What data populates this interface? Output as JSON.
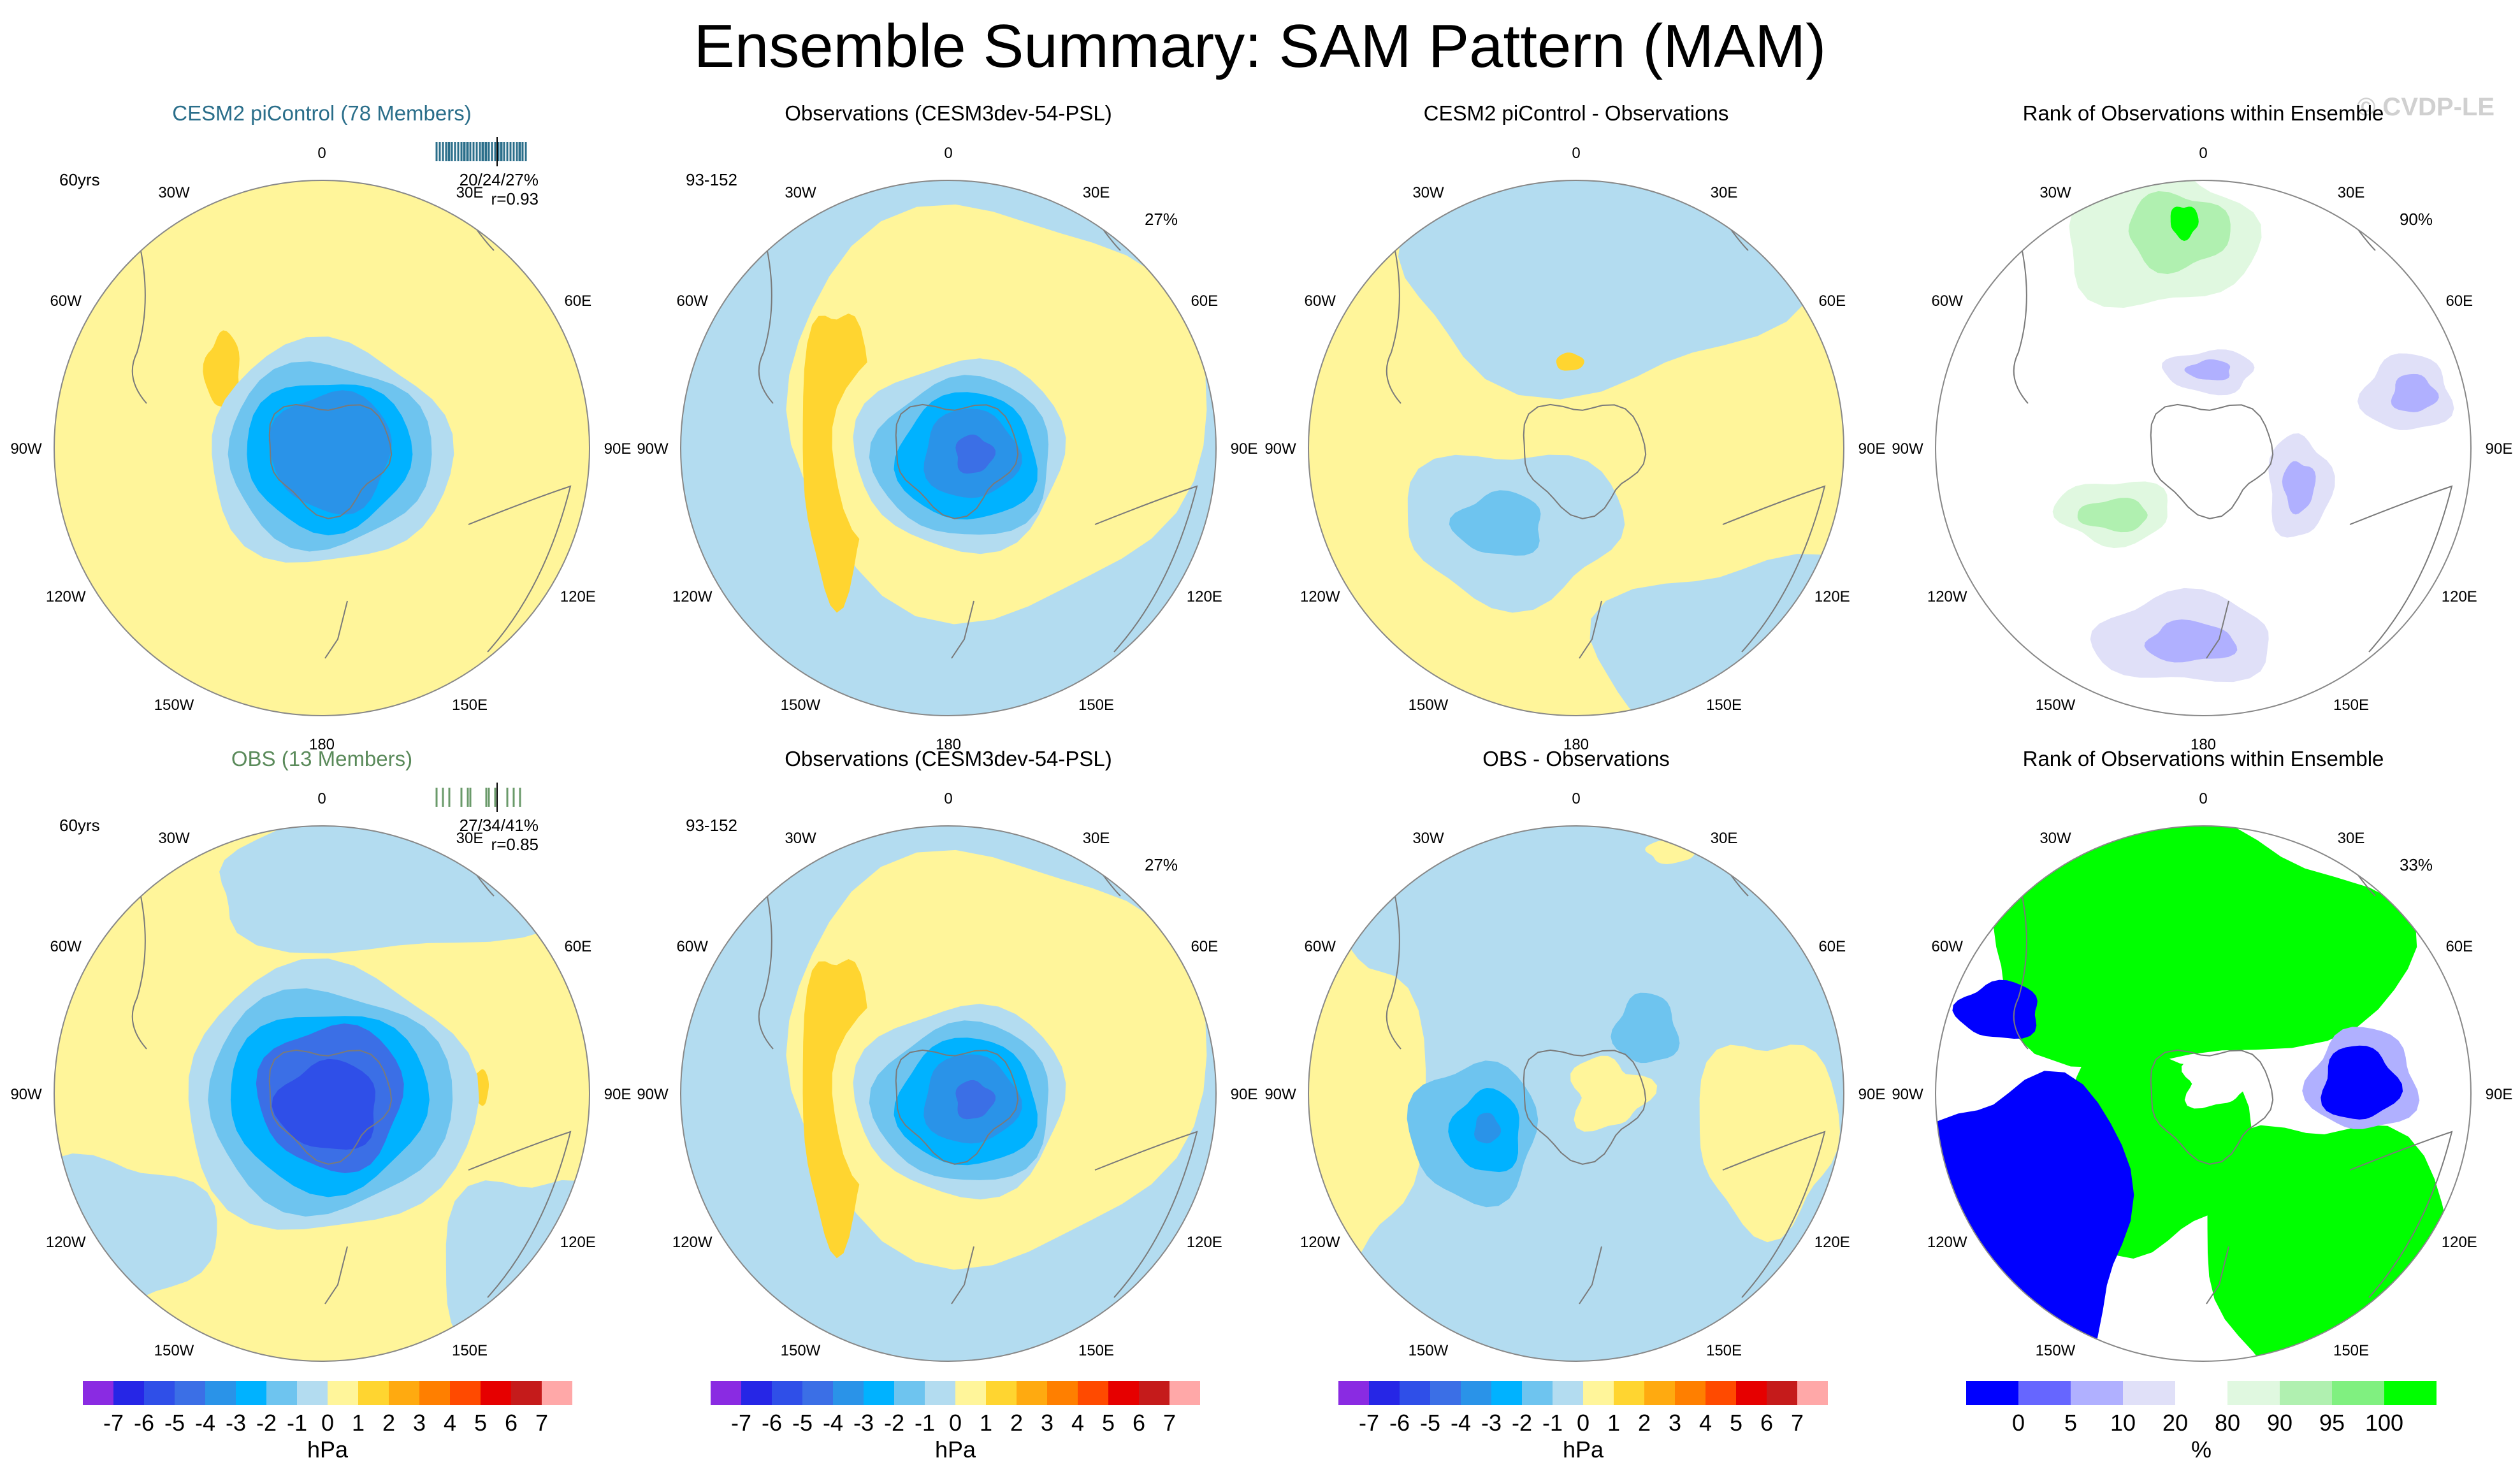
{
  "title": "Ensemble Summary: SAM Pattern (MAM)",
  "watermark": "© CVDP-LE",
  "chart_data": {
    "type": "polar-stereographic contour maps",
    "units": "hPa",
    "longitude_labels": [
      "0",
      "30E",
      "60E",
      "90E",
      "120E",
      "150E",
      "180",
      "150W",
      "120W",
      "90W",
      "60W",
      "30W"
    ],
    "colorbar_hpa": {
      "ticks": [
        "-7",
        "-6",
        "-5",
        "-4",
        "-3",
        "-2",
        "-1",
        "0",
        "1",
        "2",
        "3",
        "4",
        "5",
        "6",
        "7"
      ],
      "label": "hPa",
      "colors": [
        "#8a2be2",
        "#2626e6",
        "#2f4fe8",
        "#3b6fe6",
        "#2a93e8",
        "#00b2ff",
        "#6ec4ef",
        "#b3dcf0",
        "#fff59a",
        "#ffd530",
        "#ffaa10",
        "#ff7f00",
        "#ff4a00",
        "#e60000",
        "#c51b1b",
        "#ffa8a8"
      ]
    },
    "colorbar_rank": {
      "ticks": [
        "0",
        "5",
        "10",
        "20",
        "80",
        "90",
        "95",
        "100"
      ],
      "label": "%",
      "colors": [
        "#0000ff",
        "#6666ff",
        "#b0b0ff",
        "#e0e0f8",
        "#ffffff",
        "#e0f8e0",
        "#b0f0b0",
        "#80f080",
        "#00ff00"
      ]
    },
    "panels": [
      {
        "id": "r1c1",
        "title": "CESM2 piControl (78 Members)",
        "title_color": "#2a6e8a",
        "left_note": "60yrs",
        "right_note": "20/24/27%",
        "right_note2": "r=0.93",
        "rug": true,
        "type": "ensemble"
      },
      {
        "id": "r1c2",
        "title": "Observations (CESM3dev-54-PSL)",
        "title_color": "#000000",
        "left_note": "93-152",
        "right_note": "27%",
        "type": "observations"
      },
      {
        "id": "r1c3",
        "title": "CESM2 piControl - Observations",
        "title_color": "#000000",
        "type": "difference"
      },
      {
        "id": "r1c4",
        "title": "Rank of Observations within Ensemble",
        "title_color": "#000000",
        "right_note": "90%",
        "type": "rank-low"
      },
      {
        "id": "r2c1",
        "title": "OBS (13 Members)",
        "title_color": "#5a8a5a",
        "left_note": "60yrs",
        "right_note": "27/34/41%",
        "right_note2": "r=0.85",
        "rug": true,
        "type": "ensemble"
      },
      {
        "id": "r2c2",
        "title": "Observations (CESM3dev-54-PSL)",
        "title_color": "#000000",
        "left_note": "93-152",
        "right_note": "27%",
        "type": "observations"
      },
      {
        "id": "r2c3",
        "title": "OBS - Observations",
        "title_color": "#000000",
        "type": "difference"
      },
      {
        "id": "r2c4",
        "title": "Rank of Observations within Ensemble",
        "title_color": "#000000",
        "right_note": "33%",
        "type": "rank-high"
      }
    ]
  }
}
